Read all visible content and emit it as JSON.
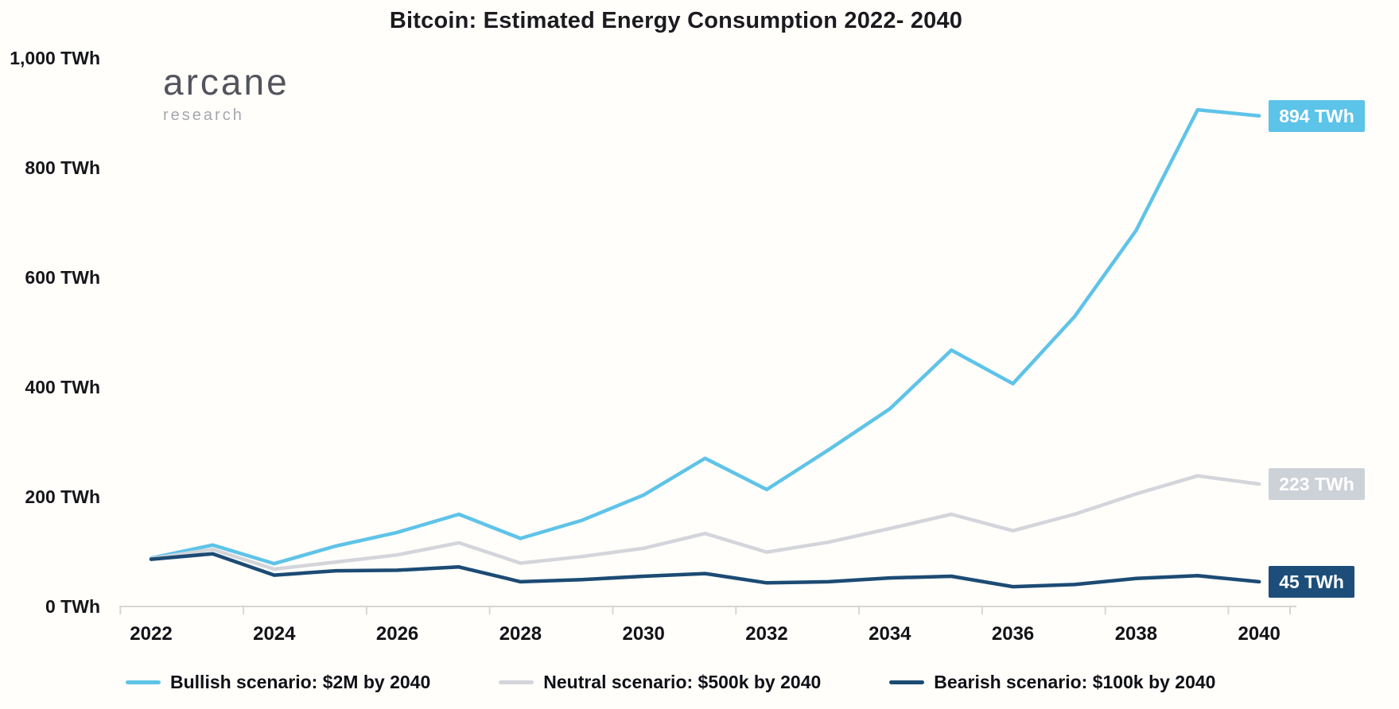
{
  "title": "Bitcoin: Estimated Energy Consumption 2022- 2040",
  "logo": {
    "name": "arcane",
    "subtitle": "research"
  },
  "chart_data": {
    "type": "line",
    "title": "Bitcoin: Estimated Energy Consumption 2022- 2040",
    "x": [
      2022,
      2023,
      2024,
      2025,
      2026,
      2027,
      2028,
      2029,
      2030,
      2031,
      2032,
      2033,
      2034,
      2035,
      2036,
      2037,
      2038,
      2039,
      2040
    ],
    "xticks": [
      "2022",
      "2024",
      "2026",
      "2028",
      "2030",
      "2032",
      "2034",
      "2036",
      "2038",
      "2040"
    ],
    "yticks": [
      {
        "value": 0,
        "label": "0 TWh"
      },
      {
        "value": 200,
        "label": "200 TWh"
      },
      {
        "value": 400,
        "label": "400 TWh"
      },
      {
        "value": 600,
        "label": "600 TWh"
      },
      {
        "value": 800,
        "label": "800 TWh"
      },
      {
        "value": 1000,
        "label": "1,000 TWh"
      }
    ],
    "ylim": [
      0,
      1000
    ],
    "grid": false,
    "legend_position": "bottom",
    "series": [
      {
        "name": "Bullish scenario: $2M by 2040",
        "color": "#5FC3E8",
        "label_bg": "#5CC3E9",
        "end_label": "894 TWh",
        "end_value": 894,
        "values": [
          88,
          112,
          78,
          110,
          135,
          168,
          124,
          157,
          203,
          270,
          213,
          285,
          360,
          467,
          406,
          528,
          685,
          905,
          894
        ]
      },
      {
        "name": "Neutral scenario: $500k by 2040",
        "color": "#D3D5DB",
        "label_bg": "#CDD1D8",
        "end_label": "223 TWh",
        "end_value": 223,
        "values": [
          87,
          104,
          68,
          81,
          94,
          116,
          79,
          91,
          106,
          133,
          99,
          117,
          142,
          168,
          138,
          168,
          205,
          238,
          223
        ]
      },
      {
        "name": "Bearish scenario: $100k by 2040",
        "color": "#1C4B74",
        "label_bg": "#1D4E79",
        "end_label": "45 TWh",
        "end_value": 45,
        "values": [
          86,
          96,
          57,
          65,
          66,
          72,
          45,
          49,
          55,
          60,
          43,
          45,
          52,
          55,
          36,
          40,
          51,
          56,
          45
        ]
      }
    ]
  }
}
